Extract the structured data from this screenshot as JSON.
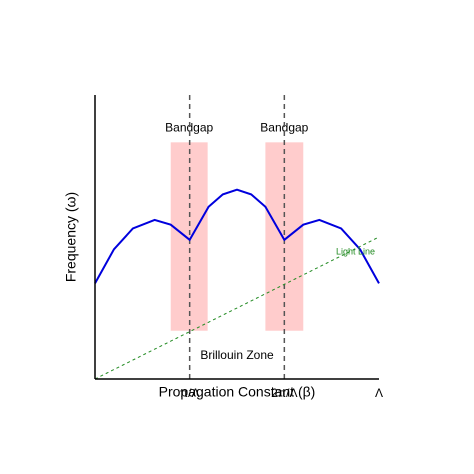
{
  "chart_data": {
    "type": "line",
    "xlabel": "Propagation Constant (β)",
    "ylabel": "Frequency (ω)",
    "annotation": "Brillouin Zone",
    "xlim": [
      0,
      3
    ],
    "ylim": [
      0,
      3
    ],
    "xticks": [
      {
        "value": 1,
        "label": "π/Λ"
      },
      {
        "value": 2,
        "label": "2π/Λ"
      },
      {
        "value": 3,
        "label": "Λ"
      }
    ],
    "vlines": [
      1,
      2
    ],
    "bands": [
      {
        "label": "Bandgap",
        "x": [
          0.8,
          1.19
        ],
        "y": [
          0.51,
          2.5
        ],
        "color": "#ffcccc"
      },
      {
        "label": "Bandgap",
        "x": [
          1.8,
          2.2
        ],
        "y": [
          0.51,
          2.5
        ],
        "color": "#ffcccc"
      }
    ],
    "series": [
      {
        "color": "#0000dd",
        "style": "solid",
        "x": [
          0,
          0.2,
          0.4,
          0.63,
          0.8,
          1.0,
          1.2,
          1.35,
          1.5,
          1.65,
          1.8,
          2.0,
          2.2,
          2.37,
          2.6,
          2.8,
          3.0
        ],
        "values": [
          1.01,
          1.37,
          1.59,
          1.68,
          1.63,
          1.47,
          1.82,
          1.95,
          2.0,
          1.95,
          1.82,
          1.47,
          1.63,
          1.68,
          1.59,
          1.37,
          1.01
        ]
      },
      {
        "name": "Light Line",
        "color": "#228b22",
        "style": "dashed",
        "x": [
          0,
          3
        ],
        "values": [
          0,
          1.5
        ]
      }
    ]
  }
}
